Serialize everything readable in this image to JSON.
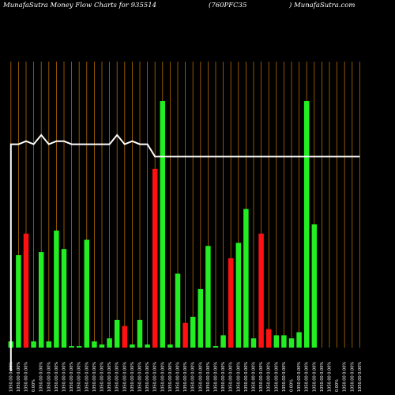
{
  "header": {
    "left": "MunafaSutra  Money Flow  Charts for 935514",
    "middle": "(760PFC35",
    "right": ") MunafaSutra.com"
  },
  "colors": {
    "background": "#000000",
    "grid": "#b36a00",
    "up": "#22ee22",
    "down": "#ff1111",
    "line": "#ffffff"
  },
  "chart_data": {
    "type": "bar",
    "title": "MunafaSutra  Money Flow  Charts for 935514 (760PFC35 ) MunafaSutra.com",
    "xlabel": "",
    "ylabel": "",
    "grid": true,
    "ylim": [
      0,
      100
    ],
    "categories": [
      "1050.00 0.00%",
      "1050.00 0.00%",
      "1050.00 0.00%",
      "0.00%",
      "1050.00 0.00%",
      "1050.00 0.00%",
      "1050.00 0.00%",
      "1050.00 0.00%",
      "1050.00 0.00%",
      "1050.00 0.00%",
      "1050.00 0.00%",
      "1050.00 0.00%",
      "1050.00 0.00%",
      "1050.00 0.00%",
      "1050.00 0.00%",
      "1050.00 0.00%",
      "1050.00 0.00%",
      "1050.00 0.00%",
      "1050.00 0.00%",
      "1050.00 0.00%",
      "1050.00 0.00%",
      "1050.00 0.00%",
      "1050.00 0.00%",
      "1050.00 0.00%",
      "1050.00 0.00%",
      "1050.00 0.00%",
      "1050.00 0.00%",
      "1050.00 0.00%",
      "1050.00 0.00%",
      "1050.00 0.00%",
      "1050.00 0.00%",
      "1050.00 0.00%",
      "1050.00 0.00%",
      "1050.00 0.00%",
      "1050.00 0.00%",
      "1050.00 0.00%",
      "1050.00 0.00%",
      "0.00%",
      "1050.00 0.00%",
      "1050.00 0.00%",
      "1050.00 0.00%",
      "1050.00 0.00%",
      "1050.00 0.00%",
      "0.00%",
      "1050.00 0.00%",
      "1050.00 0.00%",
      "1050.00 0.00%"
    ],
    "series": [
      {
        "values": [
          2,
          30,
          37,
          2,
          31,
          2,
          38,
          32,
          0.5,
          0.5,
          35,
          2,
          1,
          3,
          9,
          7,
          1,
          9,
          1,
          58,
          80,
          1,
          24,
          8,
          10,
          19,
          33,
          0.5,
          4,
          29,
          34,
          45,
          3,
          37,
          6,
          4,
          4,
          3,
          5,
          80,
          40,
          0,
          0,
          0,
          0,
          0,
          0
        ]
      }
    ],
    "bar_colors": [
      "up",
      "up",
      "down",
      "up",
      "up",
      "up",
      "up",
      "up",
      "up",
      "up",
      "up",
      "up",
      "up",
      "up",
      "up",
      "down",
      "up",
      "up",
      "up",
      "down",
      "up",
      "up",
      "up",
      "down",
      "up",
      "up",
      "up",
      "up",
      "up",
      "down",
      "up",
      "up",
      "up",
      "down",
      "down",
      "up",
      "up",
      "up",
      "up",
      "up",
      "up",
      "up",
      "up",
      "up",
      "up",
      "up",
      "up"
    ],
    "line_values": [
      66,
      66,
      67,
      66,
      69,
      66,
      67,
      67,
      66,
      66,
      66,
      66,
      66,
      66,
      69,
      66,
      67,
      66,
      66,
      62,
      62,
      62,
      62,
      62,
      62,
      62,
      62,
      62,
      62,
      62,
      62,
      62,
      62,
      62,
      62,
      62,
      62,
      62,
      62,
      62,
      62,
      62,
      62,
      62,
      62,
      62,
      62
    ]
  }
}
